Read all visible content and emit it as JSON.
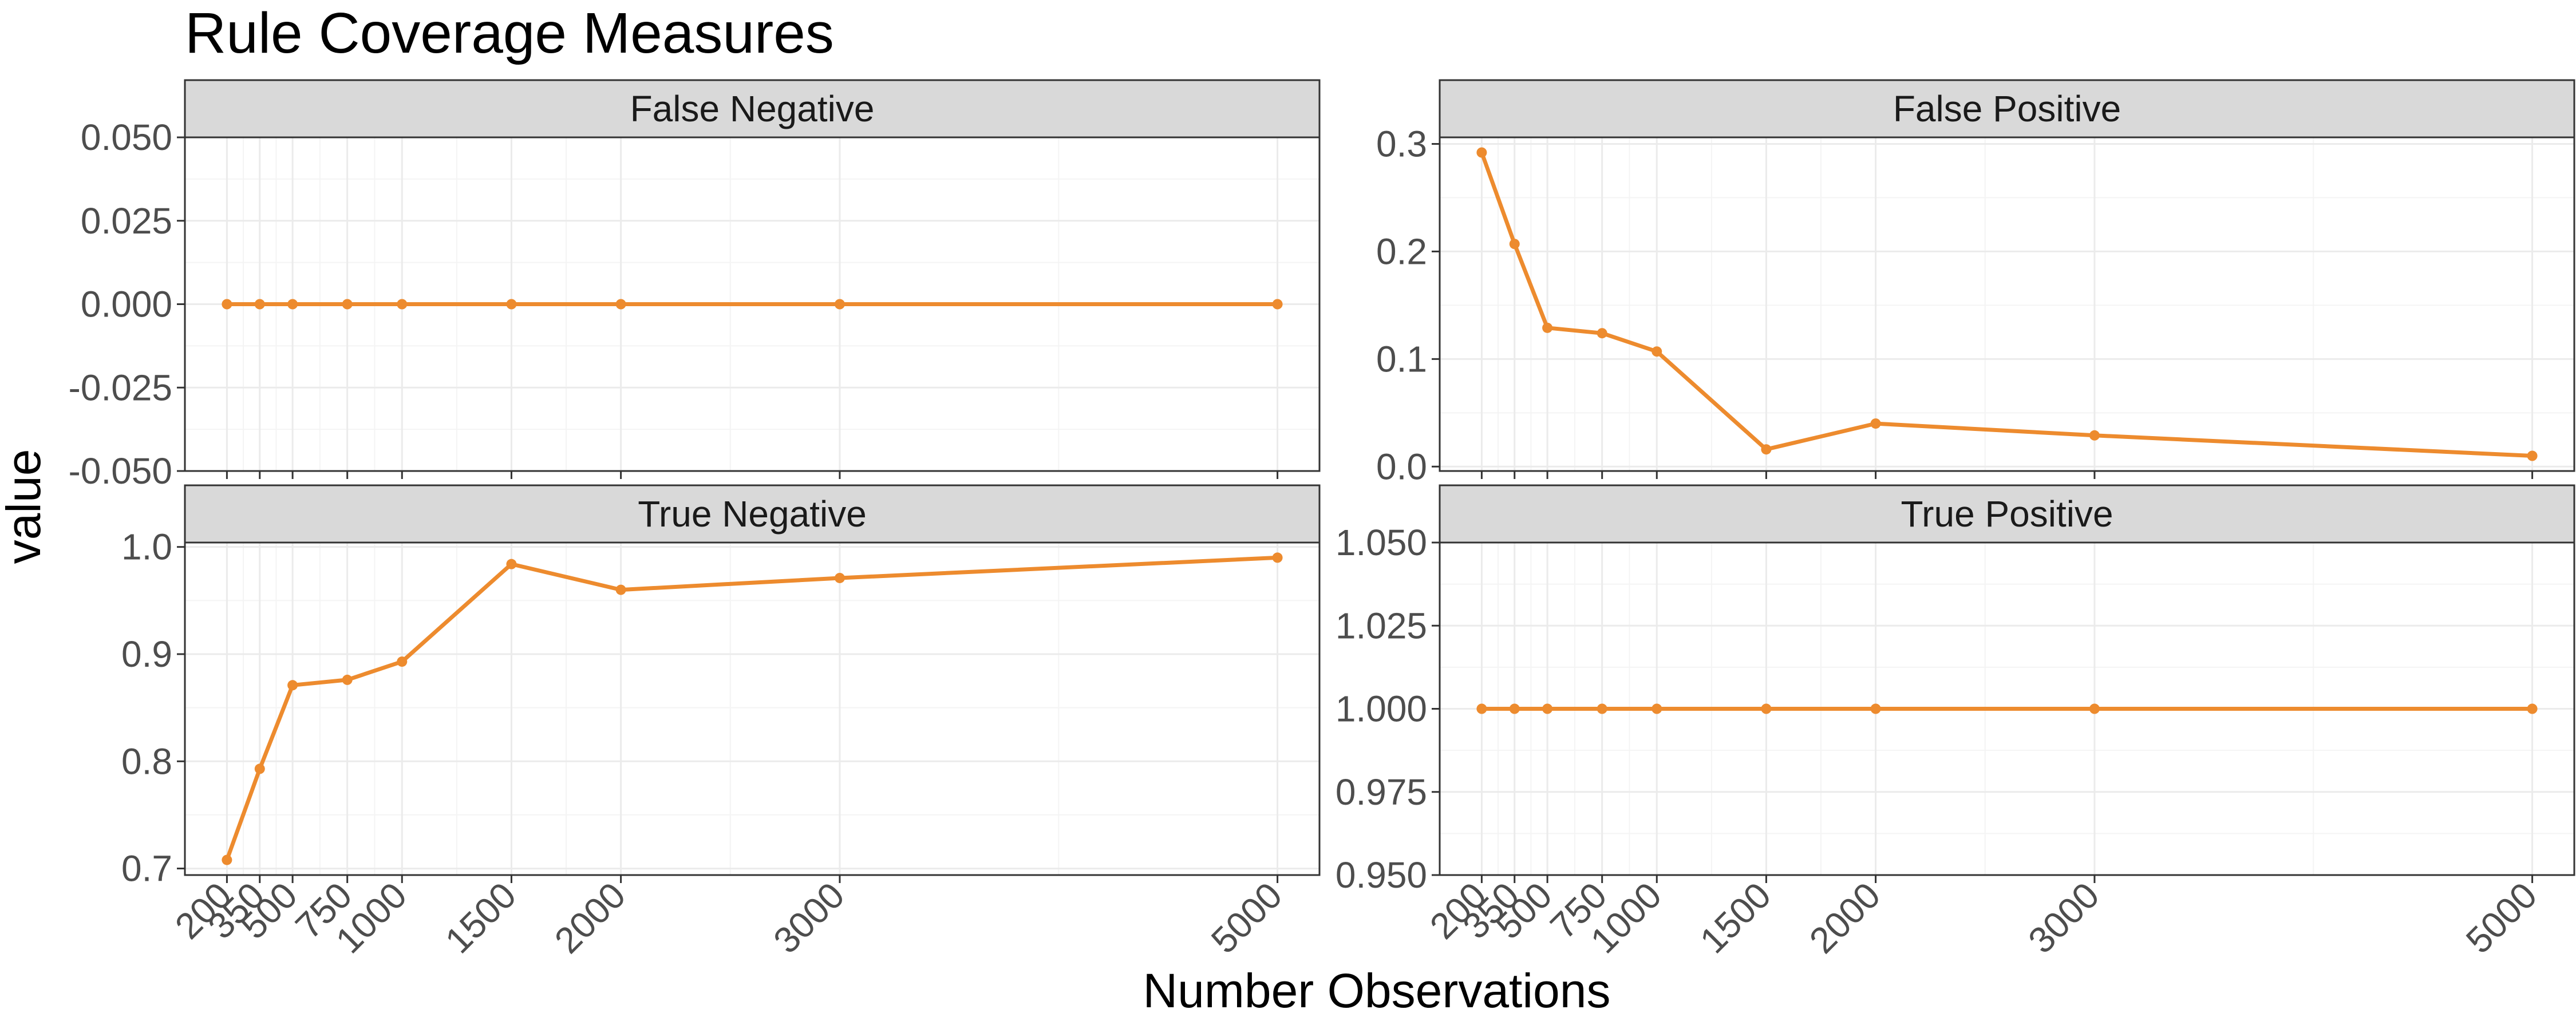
{
  "title": "Rule Coverage Measures",
  "xlabel": "Number Observations",
  "ylabel": "value",
  "colors": {
    "series": "#ED8B2E",
    "strip_bg": "#D9D9D9",
    "grid_major": "#EBEBEB",
    "grid_minor": "#F4F4F4",
    "panel_border": "#333333",
    "tick_text": "#4D4D4D"
  },
  "chart_data": [
    {
      "type": "line",
      "title": "False Negative",
      "x": [
        200,
        350,
        500,
        750,
        1000,
        1500,
        2000,
        3000,
        5000
      ],
      "x_tick_labels": [
        "200",
        "350",
        "500",
        "750",
        "1000",
        "1500",
        "2000",
        "3000",
        "5000"
      ],
      "y": [
        0,
        0,
        0,
        0,
        0,
        0,
        0,
        0,
        0
      ],
      "ylim": [
        -0.05,
        0.05
      ],
      "y_ticks": [
        -0.05,
        -0.025,
        0,
        0.025,
        0.05
      ],
      "y_tick_labels": [
        "-0.050",
        "-0.025",
        "0.000",
        "0.025",
        "0.050"
      ],
      "x_tick_labels_shown": false,
      "grid": true
    },
    {
      "type": "line",
      "title": "False Positive",
      "x": [
        200,
        350,
        500,
        750,
        1000,
        1500,
        2000,
        3000,
        5000
      ],
      "x_tick_labels": [
        "200",
        "350",
        "500",
        "750",
        "1000",
        "1500",
        "2000",
        "3000",
        "5000"
      ],
      "y": [
        0.292,
        0.207,
        0.129,
        0.124,
        0.107,
        0.016,
        0.04,
        0.029,
        0.01
      ],
      "ylim": [
        -0.0041,
        0.3061
      ],
      "y_ticks": [
        0,
        0.1,
        0.2,
        0.3
      ],
      "y_tick_labels": [
        "0.0",
        "0.1",
        "0.2",
        "0.3"
      ],
      "x_tick_labels_shown": false,
      "grid": true
    },
    {
      "type": "line",
      "title": "True Negative",
      "x": [
        200,
        350,
        500,
        750,
        1000,
        1500,
        2000,
        3000,
        5000
      ],
      "x_tick_labels": [
        "200",
        "350",
        "500",
        "750",
        "1000",
        "1500",
        "2000",
        "3000",
        "5000"
      ],
      "y": [
        0.708,
        0.793,
        0.871,
        0.876,
        0.893,
        0.984,
        0.96,
        0.971,
        0.99
      ],
      "ylim": [
        0.6939,
        1.0041
      ],
      "y_ticks": [
        0.7,
        0.8,
        0.9,
        1.0
      ],
      "y_tick_labels": [
        "0.7",
        "0.8",
        "0.9",
        "1.0"
      ],
      "x_tick_labels_shown": true,
      "grid": true
    },
    {
      "type": "line",
      "title": "True Positive",
      "x": [
        200,
        350,
        500,
        750,
        1000,
        1500,
        2000,
        3000,
        5000
      ],
      "x_tick_labels": [
        "200",
        "350",
        "500",
        "750",
        "1000",
        "1500",
        "2000",
        "3000",
        "5000"
      ],
      "y": [
        1,
        1,
        1,
        1,
        1,
        1,
        1,
        1,
        1
      ],
      "ylim": [
        0.95,
        1.05
      ],
      "y_ticks": [
        0.95,
        0.975,
        1.0,
        1.025,
        1.05
      ],
      "y_tick_labels": [
        "0.950",
        "0.975",
        "1.000",
        "1.025",
        "1.050"
      ],
      "x_tick_labels_shown": true,
      "grid": true
    }
  ]
}
